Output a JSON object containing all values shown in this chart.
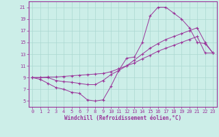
{
  "xlabel": "Windchill (Refroidissement éolien,°C)",
  "bg_color": "#cceee8",
  "grid_color": "#aad8d0",
  "line_color": "#993399",
  "xlim": [
    -0.5,
    23.5
  ],
  "ylim": [
    4,
    22
  ],
  "xticks": [
    0,
    1,
    2,
    3,
    4,
    5,
    6,
    7,
    8,
    9,
    10,
    11,
    12,
    13,
    14,
    15,
    16,
    17,
    18,
    19,
    20,
    21,
    22,
    23
  ],
  "yticks": [
    5,
    7,
    9,
    11,
    13,
    15,
    17,
    19,
    21
  ],
  "curve1_x": [
    0,
    1,
    2,
    3,
    4,
    5,
    6,
    7,
    8,
    9,
    10,
    11,
    12,
    13,
    14,
    15,
    16,
    17,
    18,
    19,
    20,
    21,
    22,
    23
  ],
  "curve1_y": [
    9.0,
    8.7,
    8.0,
    7.3,
    7.0,
    6.5,
    6.3,
    5.2,
    5.0,
    5.2,
    7.5,
    10.2,
    12.3,
    12.5,
    15.0,
    19.5,
    21.0,
    21.0,
    20.0,
    19.0,
    17.5,
    15.0,
    14.8,
    13.2
  ],
  "curve2_x": [
    0,
    1,
    2,
    3,
    4,
    5,
    6,
    7,
    8,
    9,
    10,
    11,
    12,
    13,
    14,
    15,
    16,
    17,
    18,
    19,
    20,
    21,
    22,
    23
  ],
  "curve2_y": [
    9.0,
    9.0,
    9.0,
    8.5,
    8.3,
    8.2,
    8.0,
    7.8,
    7.8,
    8.5,
    9.5,
    10.2,
    11.0,
    12.0,
    13.0,
    14.0,
    14.8,
    15.5,
    16.0,
    16.5,
    17.0,
    17.5,
    15.0,
    13.2
  ],
  "curve3_x": [
    0,
    1,
    2,
    3,
    4,
    5,
    6,
    7,
    8,
    9,
    10,
    11,
    12,
    13,
    14,
    15,
    16,
    17,
    18,
    19,
    20,
    21,
    22,
    23
  ],
  "curve3_y": [
    9.0,
    9.0,
    9.1,
    9.1,
    9.2,
    9.3,
    9.4,
    9.5,
    9.6,
    9.7,
    10.0,
    10.5,
    11.0,
    11.5,
    12.2,
    12.8,
    13.5,
    14.0,
    14.5,
    15.0,
    15.5,
    16.0,
    13.2,
    13.2
  ]
}
